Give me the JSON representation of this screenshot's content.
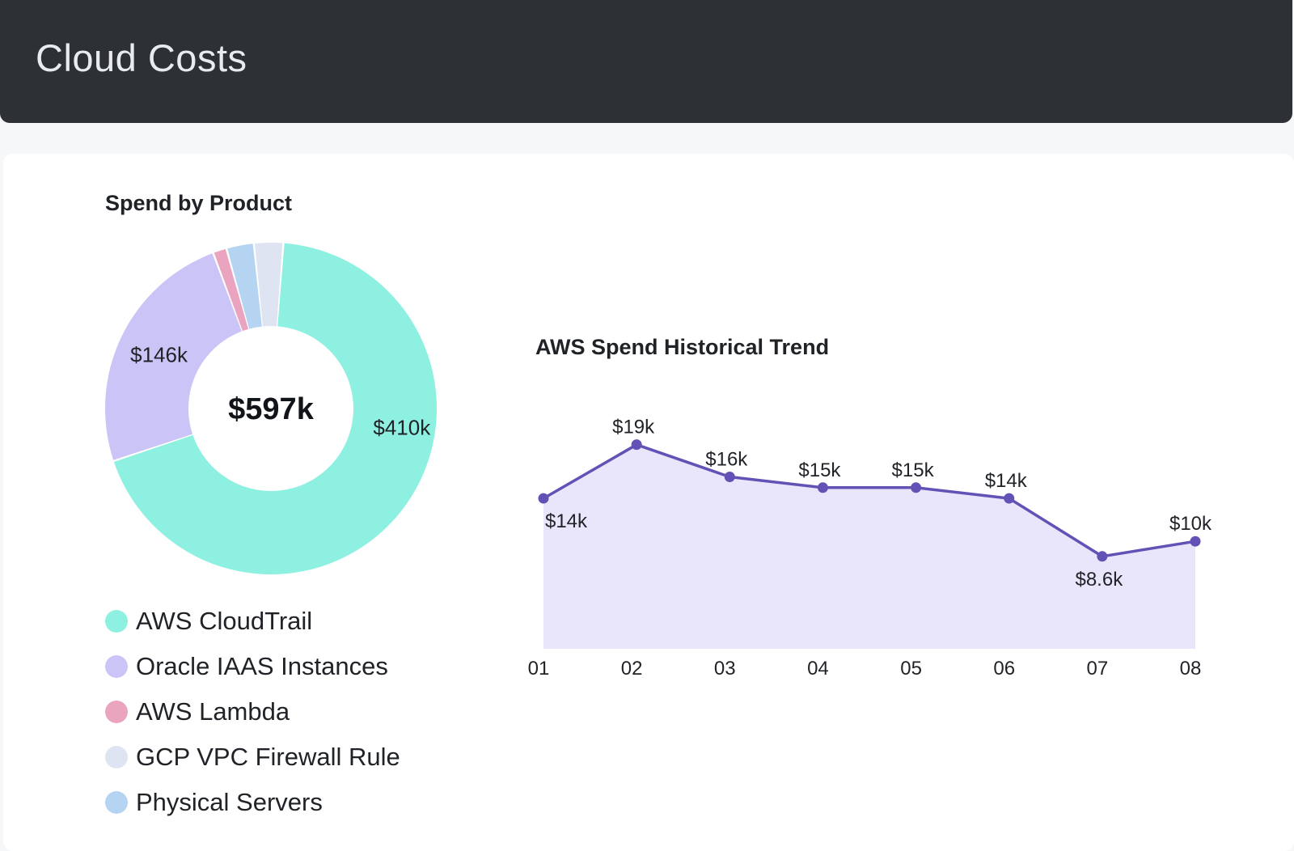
{
  "header": {
    "title": "Cloud Costs"
  },
  "chart_data": [
    {
      "type": "pie",
      "title": "Spend by Product",
      "center_label": "$597k",
      "slices": [
        {
          "name": "AWS CloudTrail",
          "value": 410,
          "label": "$410k",
          "color": "#8df0e0"
        },
        {
          "name": "Oracle IAAS Instances",
          "value": 146,
          "label": "$146k",
          "color": "#cbc4f6"
        },
        {
          "name": "AWS Lambda",
          "value": 8,
          "label": "",
          "color": "#eba4c0"
        },
        {
          "name": "Physical Servers",
          "value": 16,
          "label": "",
          "color": "#b5d4f2"
        },
        {
          "name": "GCP VPC Firewall Rule",
          "value": 17,
          "label": "",
          "color": "#dfe4f2"
        }
      ],
      "legend": [
        {
          "name": "AWS CloudTrail",
          "color": "#8df0e0"
        },
        {
          "name": "Oracle IAAS Instances",
          "color": "#cbc4f6"
        },
        {
          "name": "AWS Lambda",
          "color": "#eba4c0"
        },
        {
          "name": "GCP VPC Firewall Rule",
          "color": "#dfe4f2"
        },
        {
          "name": "Physical Servers",
          "color": "#b5d4f2"
        }
      ]
    },
    {
      "type": "area",
      "title": "AWS Spend Historical Trend",
      "x": [
        "01",
        "02",
        "03",
        "04",
        "05",
        "06",
        "07",
        "08"
      ],
      "values": [
        14,
        19,
        16,
        15,
        15,
        14,
        8.6,
        10
      ],
      "labels": [
        "$14k",
        "$19k",
        "$16k",
        "$15k",
        "$15k",
        "$14k",
        "$8.6k",
        "$10k"
      ],
      "label_positions": [
        "below",
        "above",
        "above",
        "above",
        "above",
        "above",
        "below",
        "above"
      ],
      "ylim": [
        0,
        25
      ],
      "line_color": "#6451b6",
      "fill_color": "#e9e6fb",
      "grid": false
    }
  ]
}
